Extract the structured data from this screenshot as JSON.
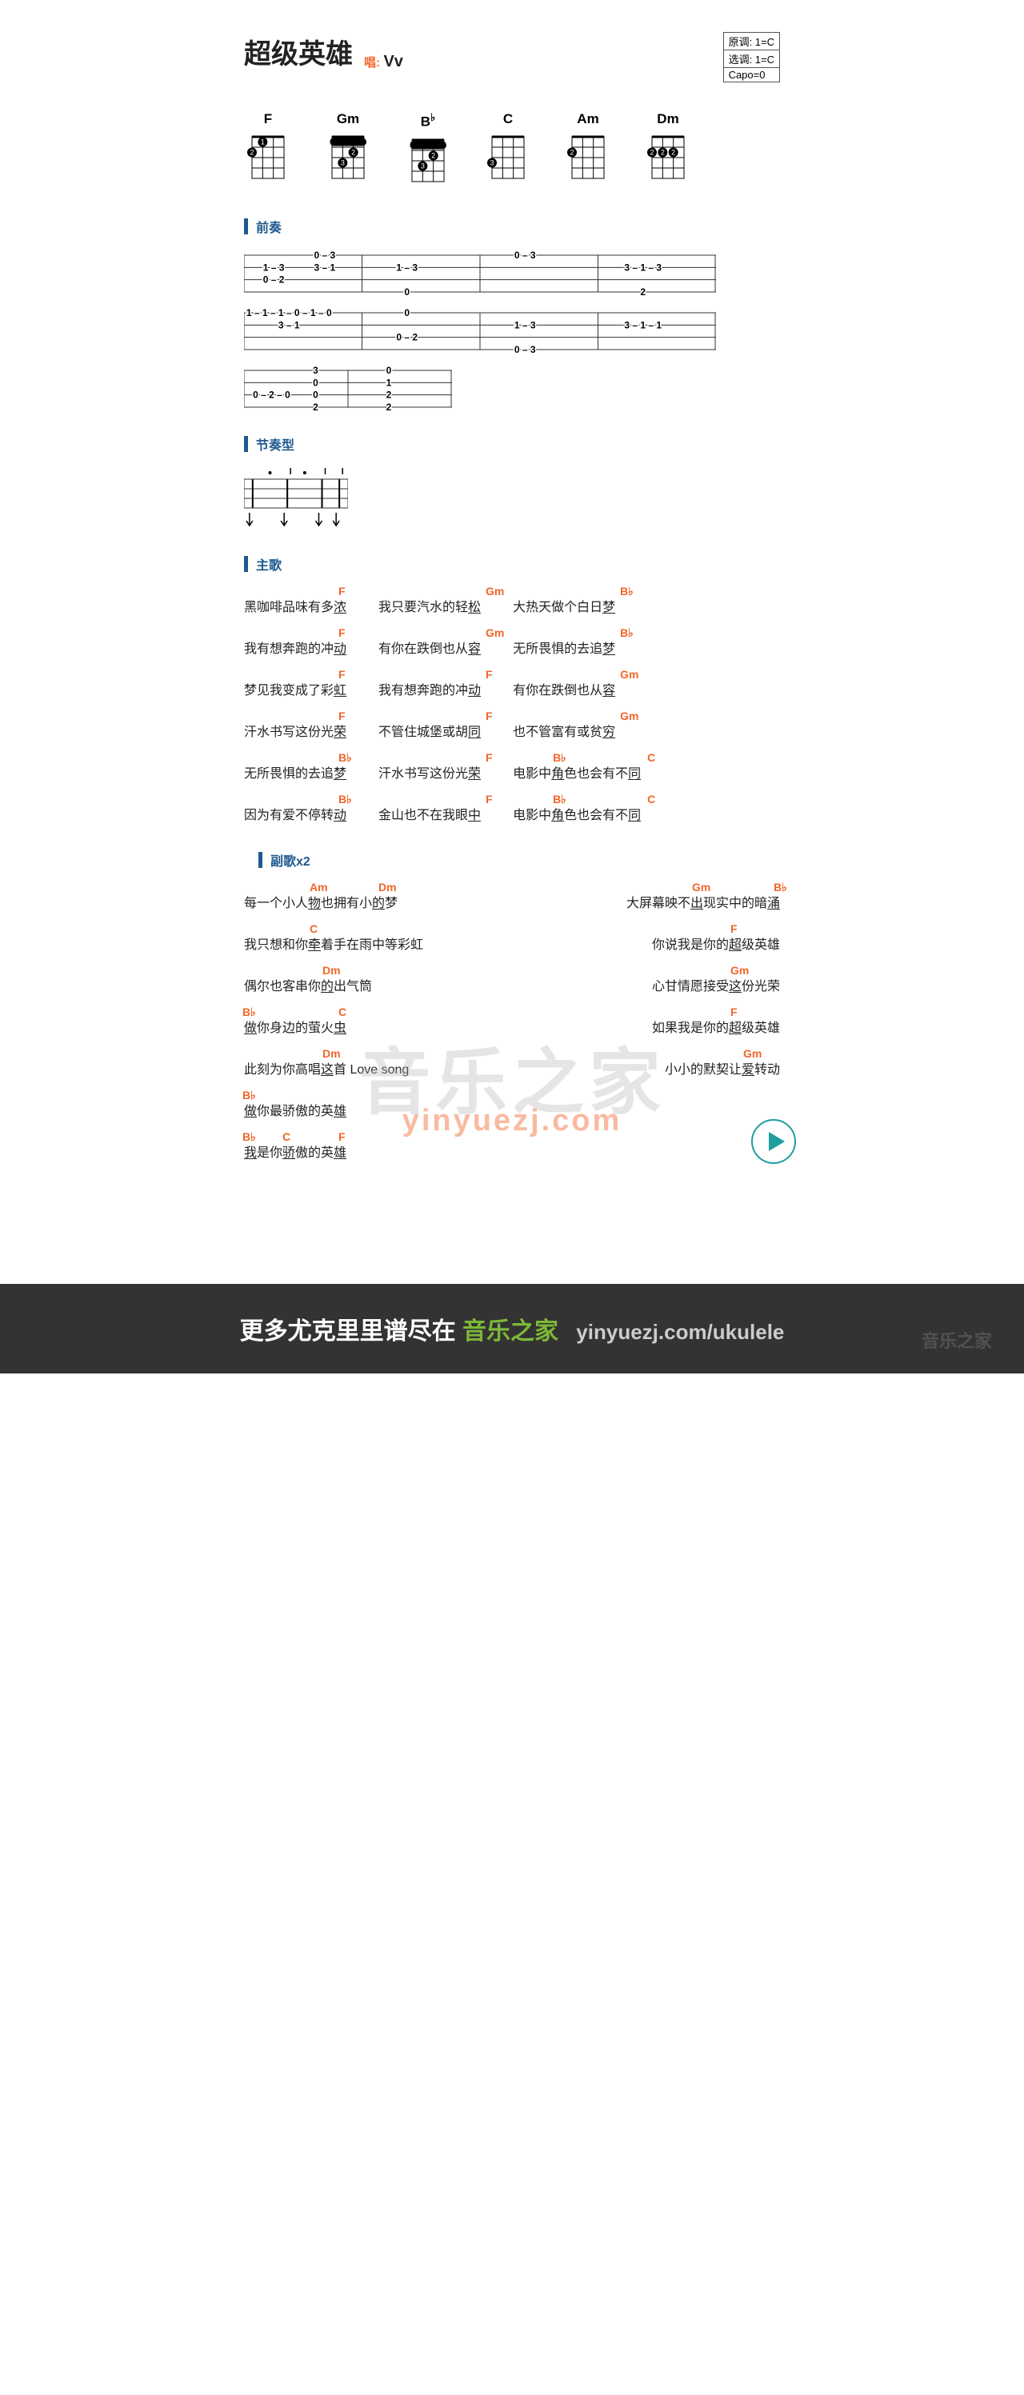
{
  "title": "超级英雄",
  "sing_label": "唱:",
  "artist": "Vv",
  "keybox": {
    "orig": "原调: 1=C",
    "sel": "选调: 1=C",
    "capo": "Capo=0"
  },
  "chords": [
    {
      "name": "F",
      "dots": [
        [
          0,
          1,
          1
        ],
        [
          1,
          0,
          2
        ]
      ],
      "barres": []
    },
    {
      "name": "Gm",
      "dots": [
        [
          1,
          2,
          2
        ],
        [
          2,
          1,
          3
        ]
      ],
      "barres": [
        [
          0,
          1
        ]
      ]
    },
    {
      "name": "B♭",
      "dots": [
        [
          1,
          2,
          2
        ],
        [
          2,
          1,
          3
        ]
      ],
      "barres": [
        [
          0,
          1
        ]
      ],
      "offset": true
    },
    {
      "name": "C",
      "dots": [
        [
          2,
          0,
          3
        ]
      ],
      "barres": []
    },
    {
      "name": "Am",
      "dots": [
        [
          1,
          0,
          2
        ]
      ],
      "barres": []
    },
    {
      "name": "Dm",
      "dots": [
        [
          1,
          0,
          2
        ],
        [
          1,
          1,
          2
        ],
        [
          1,
          2,
          2
        ]
      ],
      "barres": [],
      "open": [
        3
      ]
    }
  ],
  "sections": {
    "intro": "前奏",
    "rhythm": "节奏型",
    "verse": "主歌",
    "chorus": "副歌x2"
  },
  "tab1": {
    "strings": 4,
    "bars": [
      {
        "notes": [
          [
            "",
            "1-3",
            "0-2",
            ""
          ],
          [
            "0-3",
            "3-1",
            "",
            ""
          ]
        ]
      },
      {
        "notes": [
          [
            "",
            "1-3",
            "",
            "0"
          ]
        ]
      },
      {
        "notes": [
          [
            "0-3",
            "",
            "",
            ""
          ]
        ]
      },
      {
        "notes": [
          [
            "",
            "3-1-3",
            "",
            "2"
          ]
        ]
      }
    ]
  },
  "tab2": {
    "strings": 4,
    "bars": [
      {
        "notes": [
          [
            "1-1-1-0-1-0",
            "3-1",
            "",
            ""
          ]
        ]
      },
      {
        "notes": [
          [
            "0",
            "",
            "0-2",
            ""
          ]
        ]
      },
      {
        "notes": [
          [
            "",
            "1-3",
            "",
            "0-3"
          ]
        ]
      },
      {
        "notes": [
          [
            "",
            "3-1-1",
            "",
            ""
          ]
        ]
      }
    ]
  },
  "tab3": {
    "strings": 4,
    "bars": [
      {
        "notes": [
          [
            "",
            "",
            "0-2-0",
            ""
          ],
          [
            "3",
            "0",
            "0",
            "2"
          ]
        ]
      },
      {
        "notes": [
          [
            "0",
            "1",
            "2",
            "2"
          ]
        ]
      }
    ]
  },
  "strum": {
    "pattern": [
      "D",
      "",
      "DU",
      "",
      "DU",
      "DU"
    ],
    "accents": [
      1,
      3
    ]
  },
  "verse_rows": [
    [
      {
        "t": "黑咖啡品味有多<u>浓</u>",
        "c": [
          [
            "F",
            118
          ]
        ]
      },
      {
        "t": "我只要汽水的轻<u>松</u>",
        "c": [
          [
            "Gm",
            134
          ]
        ]
      },
      {
        "t": "大热天做个白日<u>梦</u>",
        "c": [
          [
            "B♭",
            134
          ]
        ]
      }
    ],
    [
      {
        "t": "我有想奔跑的冲<u>动</u>",
        "c": [
          [
            "F",
            118
          ]
        ]
      },
      {
        "t": "有你在跌倒也从<u>容</u>",
        "c": [
          [
            "Gm",
            134
          ]
        ]
      },
      {
        "t": "无所畏惧的去追<u>梦</u>",
        "c": [
          [
            "B♭",
            134
          ]
        ]
      }
    ],
    [
      {
        "t": "梦见我变成了彩<u>虹</u>",
        "c": [
          [
            "F",
            118
          ]
        ]
      },
      {
        "t": "我有想奔跑的冲<u>动</u>",
        "c": [
          [
            "F",
            134
          ]
        ]
      },
      {
        "t": "有你在跌倒也从<u>容</u>",
        "c": [
          [
            "Gm",
            134
          ]
        ]
      }
    ],
    [
      {
        "t": "汗水书写这份光<u>荣</u>",
        "c": [
          [
            "F",
            118
          ]
        ]
      },
      {
        "t": "不管住城堡或胡<u>同</u>",
        "c": [
          [
            "F",
            134
          ]
        ]
      },
      {
        "t": "也不管富有或贫<u>穷</u>",
        "c": [
          [
            "Gm",
            134
          ]
        ]
      }
    ],
    [
      {
        "t": "无所畏惧的去追<u>梦</u>",
        "c": [
          [
            "B♭",
            118
          ]
        ]
      },
      {
        "t": "汗水书写这份光<u>荣</u>",
        "c": [
          [
            "F",
            134
          ]
        ]
      },
      {
        "t": "电影中<u>角</u>色也会有不<u>同</u>",
        "c": [
          [
            "B♭",
            50
          ],
          [
            "C",
            168
          ]
        ]
      }
    ],
    [
      {
        "t": "因为有爱不停转<u>动</u>",
        "c": [
          [
            "B♭",
            118
          ]
        ]
      },
      {
        "t": "金山也不在我眼<u>中</u>",
        "c": [
          [
            "F",
            134
          ]
        ]
      },
      {
        "t": "电影中<u>角</u>色也会有不<u>同</u>",
        "c": [
          [
            "B♭",
            50
          ],
          [
            "C",
            168
          ]
        ]
      }
    ]
  ],
  "chorus_rows": [
    [
      {
        "t": "每一个小人<u>物</u>也拥有小<u>的</u>梦",
        "c": [
          [
            "Am",
            82
          ],
          [
            "Dm",
            168
          ]
        ]
      },
      {
        "t": "大屏幕映不<u>出</u>现实中的暗<u>涌</u>",
        "c": [
          [
            "Gm",
            82
          ],
          [
            "B♭",
            184
          ]
        ]
      }
    ],
    [
      {
        "t": "我只想和你<u>牵</u>着手在雨中等彩虹",
        "c": [
          [
            "C",
            82
          ]
        ]
      },
      {
        "t": "你说我是你的<u>超</u>级英雄",
        "c": [
          [
            "F",
            98
          ]
        ]
      }
    ],
    [
      {
        "t": "偶尔也客串你<u>的</u>出气筒",
        "c": [
          [
            "Dm",
            98
          ]
        ]
      },
      {
        "t": "心甘情愿接受<u>这</u>份光荣",
        "c": [
          [
            "Gm",
            98
          ]
        ]
      }
    ],
    [
      {
        "t": "<u>做</u>你身边的萤火<u>虫</u>",
        "c": [
          [
            "B♭",
            -2
          ],
          [
            "C",
            118
          ]
        ]
      },
      {
        "t": "如果我是你的<u>超</u>级英雄",
        "c": [
          [
            "F",
            98
          ]
        ]
      }
    ],
    [
      {
        "t": "此刻为你高唱<u>这</u>首 Love song",
        "c": [
          [
            "Dm",
            98
          ]
        ]
      },
      {
        "t": "小小的默契让<u>爱</u>转动",
        "c": [
          [
            "Gm",
            98
          ]
        ]
      }
    ],
    [
      {
        "t": "<u>做</u>你最骄傲的英<u>雄</u>",
        "c": [
          [
            "B♭",
            -2
          ]
        ]
      }
    ],
    [
      {
        "t": "<u>我</u>是你<u>骄</u>傲的英<u>雄</u>",
        "c": [
          [
            "B♭",
            -2
          ],
          [
            "C",
            48
          ],
          [
            "F",
            118
          ]
        ]
      }
    ]
  ],
  "watermark1": "音乐之家",
  "watermark2": "yinyuezj.com",
  "footer": {
    "t1": "更多尤克里里谱尽在",
    "t2": "音乐之家",
    "url": "yinyuezj.com/ukulele",
    "wm": "音乐之家"
  },
  "colors": {
    "accent": "#1e5a8e",
    "chord": "#f2662a",
    "text": "#222",
    "footer_bg": "#333",
    "green": "#7db838"
  }
}
